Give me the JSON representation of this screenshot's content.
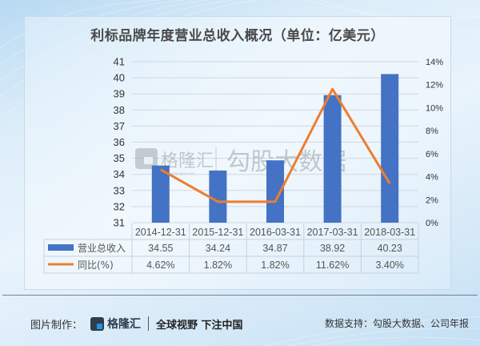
{
  "title": "利标品牌年度营业总收入概况（单位：亿美元）",
  "watermark": {
    "brand": "格隆汇",
    "brand_sub": "www.gelonghui.com",
    "text": "勾股大数据"
  },
  "chart_data": {
    "type": "bar+line",
    "title": "利标品牌年度营业总收入概况（单位：亿美元）",
    "categories": [
      "2014-12-31",
      "2015-12-31",
      "2016-03-31",
      "2017-03-31",
      "2018-03-31"
    ],
    "series": [
      {
        "name": "营业总收入",
        "type": "bar",
        "axis": "left",
        "color": "#4472c4",
        "values": [
          34.55,
          34.24,
          34.87,
          38.92,
          40.23
        ],
        "labels": [
          "34.55",
          "34.24",
          "34.87",
          "38.92",
          "40.23"
        ]
      },
      {
        "name": "同比(%)",
        "type": "line",
        "axis": "right",
        "color": "#ed7d31",
        "values": [
          4.62,
          1.82,
          1.82,
          11.62,
          3.4
        ],
        "labels": [
          "4.62%",
          "1.82%",
          "1.82%",
          "11.62%",
          "3.40%"
        ]
      }
    ],
    "y_left": {
      "min": 31,
      "max": 41,
      "ticks": [
        "31",
        "32",
        "33",
        "34",
        "35",
        "36",
        "37",
        "38",
        "39",
        "40",
        "41"
      ]
    },
    "y_right": {
      "min": 0,
      "max": 14,
      "ticks": [
        "0%",
        "2%",
        "4%",
        "6%",
        "8%",
        "10%",
        "12%",
        "14%"
      ]
    },
    "grid": true,
    "legend_position": "data-table-below"
  },
  "footer": {
    "made_by_label": "图片制作：",
    "logo_text": "格隆汇",
    "logo_sub": "www.gelonghui.com",
    "slogan": "全球视野 下注中国",
    "source": "数据支持：勾股大数据、公司年报"
  }
}
